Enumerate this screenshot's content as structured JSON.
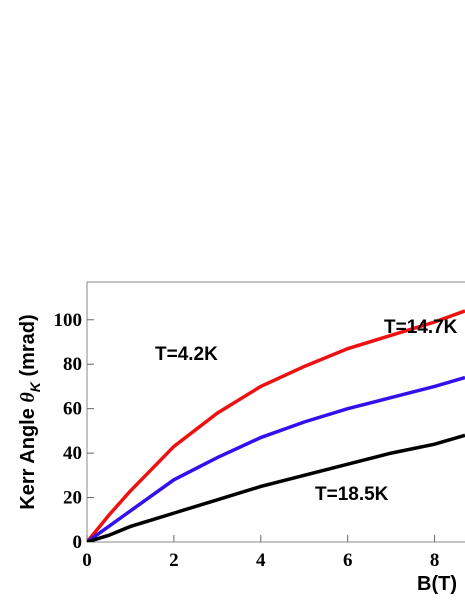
{
  "chart_data": {
    "type": "line",
    "x_label": "B(T)",
    "y_label": {
      "before": "Kerr Angle ",
      "symbol": "θ",
      "subscript": "K",
      "after": " (mrad)"
    },
    "x": [
      0,
      0.5,
      1,
      1.5,
      2,
      3,
      4,
      5,
      6,
      7,
      8,
      8.7
    ],
    "series": [
      {
        "name": "T=4.2K",
        "color": "#ee1111",
        "values": [
          0,
          12,
          23,
          33,
          43,
          58,
          70,
          79,
          87,
          93,
          99,
          104
        ]
      },
      {
        "name": "T=14.7K",
        "color": "#3311ee",
        "values": [
          0,
          7,
          14,
          21,
          28,
          38,
          47,
          54,
          60,
          65,
          70,
          74
        ]
      },
      {
        "name": "T=18.5K",
        "color": "#000000",
        "values": [
          0,
          3,
          7,
          10,
          13,
          19,
          25,
          30,
          35,
          40,
          44,
          48
        ]
      }
    ],
    "xlim": [
      0,
      8.7
    ],
    "ylim": [
      0,
      117
    ],
    "xticks": [
      0,
      2,
      4,
      6,
      8
    ],
    "yticks": [
      0,
      20,
      40,
      60,
      80,
      100
    ]
  }
}
